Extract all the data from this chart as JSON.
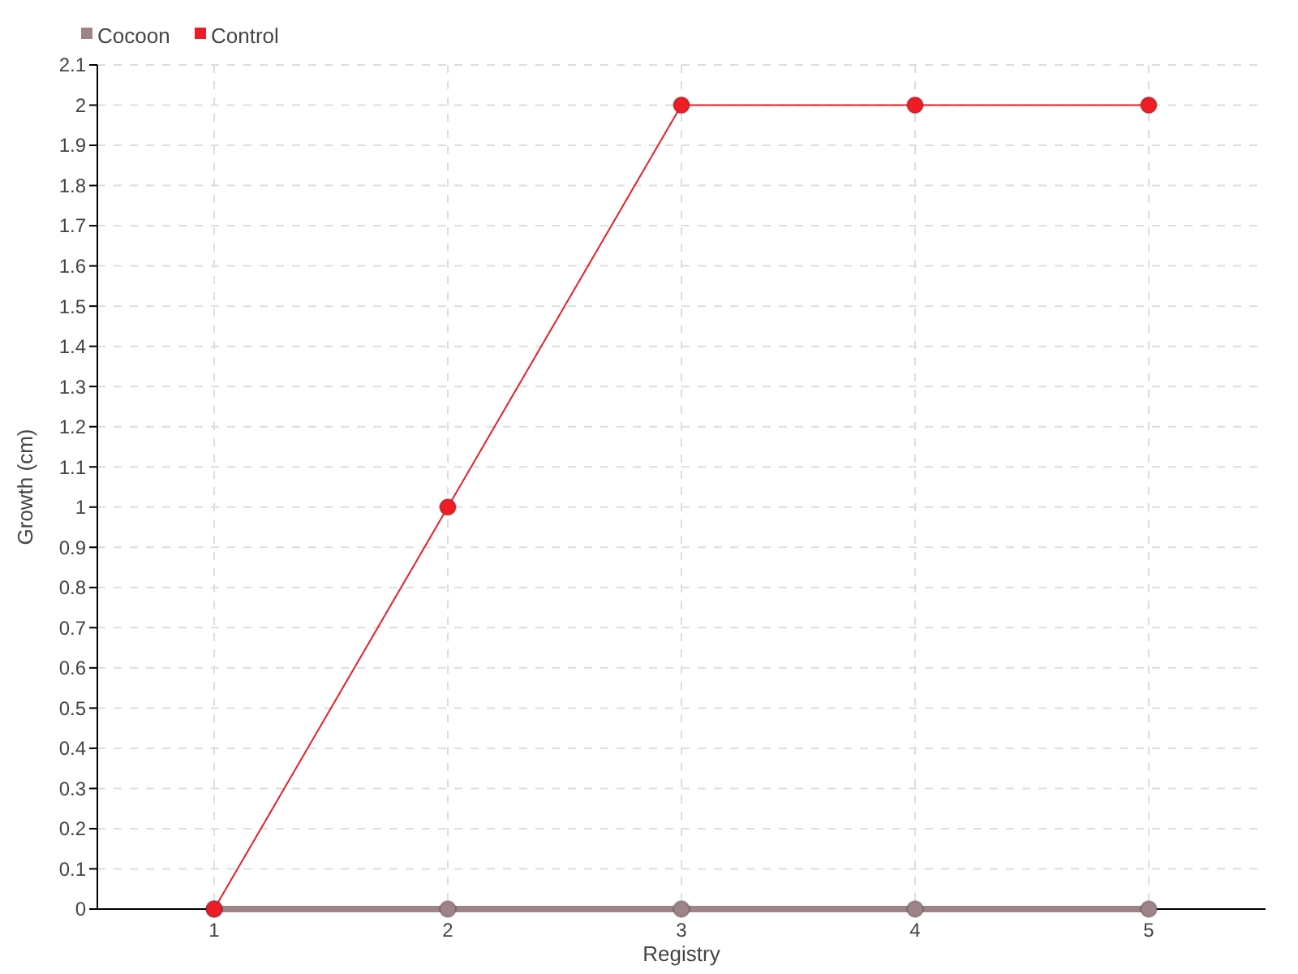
{
  "chart_data": {
    "type": "line",
    "xlabel": "Registry",
    "ylabel": "Growth (cm)",
    "x": [
      1,
      2,
      3,
      4,
      5
    ],
    "series": [
      {
        "name": "Cocoon",
        "color": "#9e8387",
        "values": [
          0,
          0,
          0,
          0,
          0
        ]
      },
      {
        "name": "Control",
        "color": "#ee1c25",
        "values": [
          0,
          1,
          2,
          2,
          2
        ]
      }
    ],
    "xlim": [
      0.5,
      5.5
    ],
    "xticks": [
      1,
      2,
      3,
      4,
      5
    ],
    "ylim": [
      0,
      2.1
    ],
    "yticks": [
      0,
      0.1,
      0.2,
      0.3,
      0.4,
      0.5,
      0.6,
      0.7,
      0.8,
      0.9,
      1,
      1.1,
      1.2,
      1.3,
      1.4,
      1.5,
      1.6,
      1.7,
      1.8,
      1.9,
      2,
      2.1
    ],
    "grid": true,
    "legend": "top left",
    "marker": "circle"
  }
}
